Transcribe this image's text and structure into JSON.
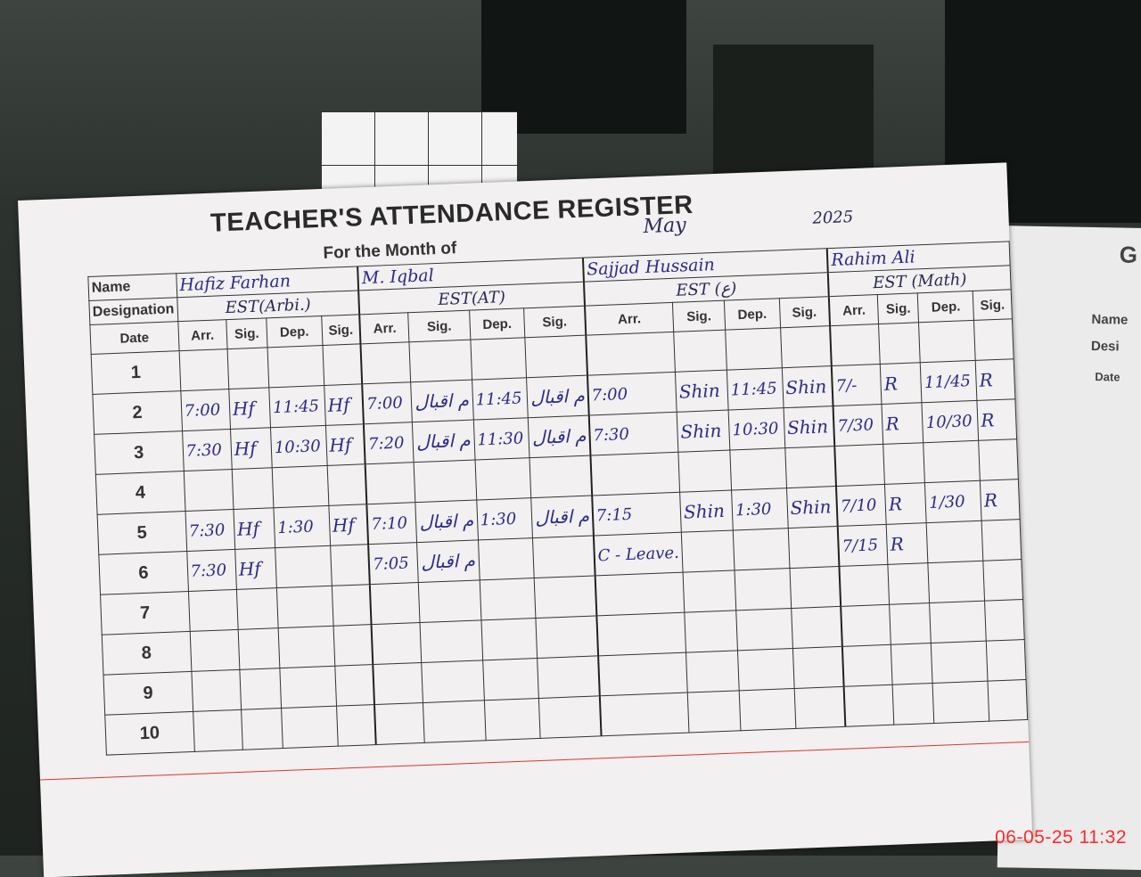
{
  "register": {
    "title": "TEACHER'S ATTENDANCE REGISTER",
    "month_label": "For the Month of",
    "month_value": "May",
    "year_value": "2025",
    "name_label": "Name",
    "designation_label": "Designation",
    "date_label": "Date",
    "col_labels": [
      "Arr.",
      "Sig.",
      "Dep.",
      "Sig."
    ],
    "teachers": [
      {
        "name": "Hafiz Farhan",
        "designation": "EST(Arbi.)"
      },
      {
        "name": "M. Iqbal",
        "designation": "EST(AT)"
      },
      {
        "name": "Sajjad Hussain",
        "designation": "EST (ع)"
      },
      {
        "name": "Rahim Ali",
        "designation": "EST (Math)"
      }
    ],
    "rows": [
      {
        "date": "1",
        "cells": [
          [
            "",
            "",
            "",
            ""
          ],
          [
            "",
            "",
            "",
            ""
          ],
          [
            "",
            "",
            "",
            ""
          ],
          [
            "",
            "",
            "",
            ""
          ]
        ]
      },
      {
        "date": "2",
        "cells": [
          [
            "7:00",
            "Hf",
            "11:45",
            "Hf"
          ],
          [
            "7:00",
            "م اقبال",
            "11:45",
            "م اقبال"
          ],
          [
            "7:00",
            "Shin",
            "11:45",
            "Shin"
          ],
          [
            "7/-",
            "R",
            "11/45",
            "R"
          ]
        ]
      },
      {
        "date": "3",
        "cells": [
          [
            "7:30",
            "Hf",
            "10:30",
            "Hf"
          ],
          [
            "7:20",
            "م اقبال",
            "11:30",
            "م اقبال"
          ],
          [
            "7:30",
            "Shin",
            "10:30",
            "Shin"
          ],
          [
            "7/30",
            "R",
            "10/30",
            "R"
          ]
        ]
      },
      {
        "date": "4",
        "cells": [
          [
            "",
            "",
            "",
            ""
          ],
          [
            "",
            "",
            "",
            ""
          ],
          [
            "",
            "",
            "",
            ""
          ],
          [
            "",
            "",
            "",
            ""
          ]
        ]
      },
      {
        "date": "5",
        "cells": [
          [
            "7:30",
            "Hf",
            "1:30",
            "Hf"
          ],
          [
            "7:10",
            "م اقبال",
            "1:30",
            "م اقبال"
          ],
          [
            "7:15",
            "Shin",
            "1:30",
            "Shin"
          ],
          [
            "7/10",
            "R",
            "1/30",
            "R"
          ]
        ]
      },
      {
        "date": "6",
        "cells": [
          [
            "7:30",
            "Hf",
            "",
            ""
          ],
          [
            "7:05",
            "م اقبال",
            "",
            ""
          ],
          [
            "C - Leave.",
            "",
            "",
            ""
          ],
          [
            "7/15",
            "R",
            "",
            ""
          ]
        ]
      },
      {
        "date": "7",
        "cells": [
          [
            "",
            "",
            "",
            ""
          ],
          [
            "",
            "",
            "",
            ""
          ],
          [
            "",
            "",
            "",
            ""
          ],
          [
            "",
            "",
            "",
            ""
          ]
        ]
      },
      {
        "date": "8",
        "cells": [
          [
            "",
            "",
            "",
            ""
          ],
          [
            "",
            "",
            "",
            ""
          ],
          [
            "",
            "",
            "",
            ""
          ],
          [
            "",
            "",
            "",
            ""
          ]
        ]
      },
      {
        "date": "9",
        "cells": [
          [
            "",
            "",
            "",
            ""
          ],
          [
            "",
            "",
            "",
            ""
          ],
          [
            "",
            "",
            "",
            ""
          ],
          [
            "",
            "",
            "",
            ""
          ]
        ]
      },
      {
        "date": "10",
        "cells": [
          [
            "",
            "",
            "",
            ""
          ],
          [
            "",
            "",
            "",
            ""
          ],
          [
            "",
            "",
            "",
            ""
          ],
          [
            "",
            "",
            "",
            ""
          ]
        ]
      }
    ]
  },
  "next_page": {
    "title_fragment": "G",
    "name_label": "Name",
    "designation_fragment": "Desi",
    "date_fragment": "Date"
  },
  "camera_timestamp": "06-05-25 11:32"
}
